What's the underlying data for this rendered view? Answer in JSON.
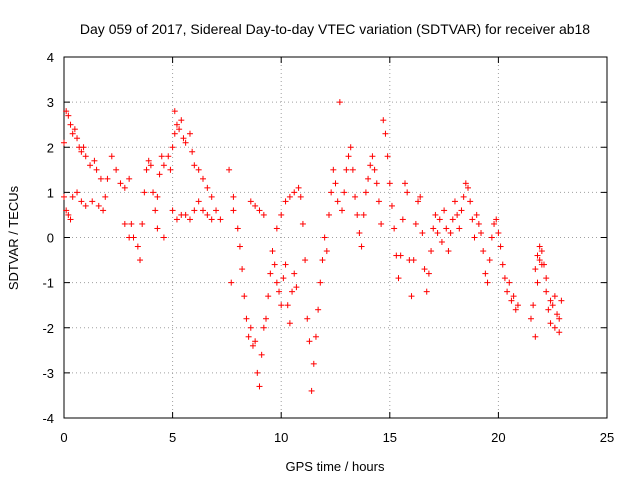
{
  "chart_data": {
    "type": "scatter",
    "title": "Day 059 of 2017, Sidereal Day-to-day VTEC variation (SDTVAR) for receiver ab18",
    "xlabel": "GPS time / hours",
    "ylabel": "SDTVAR / TECUs",
    "xlim": [
      0,
      25
    ],
    "ylim": [
      -4,
      4
    ],
    "grid": true,
    "marker": "+",
    "color": "#ff0000",
    "x_ticks": [
      "0",
      "5",
      "10",
      "15",
      "20",
      "25"
    ],
    "y_ticks": [
      "-4",
      "-3",
      "-2",
      "-1",
      "0",
      "1",
      "2",
      "3",
      "4"
    ],
    "series": [
      {
        "name": "SDTVAR",
        "points": [
          [
            0.0,
            2.1
          ],
          [
            0.1,
            2.8
          ],
          [
            0.2,
            2.7
          ],
          [
            0.3,
            2.5
          ],
          [
            0.4,
            2.3
          ],
          [
            0.5,
            2.4
          ],
          [
            0.6,
            2.2
          ],
          [
            0.7,
            2.0
          ],
          [
            0.8,
            1.9
          ],
          [
            0.9,
            2.0
          ],
          [
            1.0,
            1.8
          ],
          [
            1.2,
            1.6
          ],
          [
            1.4,
            1.7
          ],
          [
            1.5,
            1.5
          ],
          [
            1.7,
            1.3
          ],
          [
            0.0,
            0.9
          ],
          [
            0.1,
            0.6
          ],
          [
            0.2,
            0.5
          ],
          [
            0.3,
            0.4
          ],
          [
            0.4,
            0.9
          ],
          [
            0.6,
            1.0
          ],
          [
            0.8,
            0.8
          ],
          [
            1.0,
            0.7
          ],
          [
            1.3,
            0.8
          ],
          [
            1.6,
            0.7
          ],
          [
            1.8,
            0.6
          ],
          [
            1.9,
            0.9
          ],
          [
            2.0,
            1.3
          ],
          [
            2.2,
            1.8
          ],
          [
            2.4,
            1.5
          ],
          [
            2.6,
            1.2
          ],
          [
            2.8,
            1.1
          ],
          [
            3.0,
            1.3
          ],
          [
            3.1,
            0.3
          ],
          [
            3.2,
            0.0
          ],
          [
            3.4,
            -0.2
          ],
          [
            3.5,
            -0.5
          ],
          [
            3.6,
            0.3
          ],
          [
            3.7,
            1.0
          ],
          [
            3.8,
            1.5
          ],
          [
            3.9,
            1.7
          ],
          [
            4.0,
            1.6
          ],
          [
            4.1,
            1.0
          ],
          [
            4.2,
            0.6
          ],
          [
            4.3,
            0.9
          ],
          [
            4.4,
            1.4
          ],
          [
            4.5,
            1.8
          ],
          [
            4.6,
            1.6
          ],
          [
            4.8,
            1.8
          ],
          [
            4.9,
            1.5
          ],
          [
            5.0,
            2.0
          ],
          [
            5.1,
            2.3
          ],
          [
            5.2,
            2.5
          ],
          [
            5.3,
            2.4
          ],
          [
            5.4,
            2.6
          ],
          [
            5.5,
            2.2
          ],
          [
            5.6,
            2.1
          ],
          [
            5.8,
            2.3
          ],
          [
            5.9,
            1.9
          ],
          [
            6.0,
            1.6
          ],
          [
            6.2,
            1.5
          ],
          [
            6.4,
            1.3
          ],
          [
            6.6,
            1.1
          ],
          [
            6.8,
            0.9
          ],
          [
            7.0,
            0.6
          ],
          [
            7.2,
            0.4
          ],
          [
            2.8,
            0.3
          ],
          [
            3.0,
            0.0
          ],
          [
            4.3,
            0.2
          ],
          [
            4.6,
            0.0
          ],
          [
            5.0,
            0.6
          ],
          [
            5.2,
            0.4
          ],
          [
            5.4,
            0.5
          ],
          [
            5.6,
            0.5
          ],
          [
            5.8,
            0.4
          ],
          [
            6.0,
            0.6
          ],
          [
            6.2,
            0.8
          ],
          [
            6.4,
            0.6
          ],
          [
            6.6,
            0.5
          ],
          [
            6.8,
            0.4
          ],
          [
            5.1,
            2.8
          ],
          [
            7.7,
            -1.0
          ],
          [
            7.6,
            1.5
          ],
          [
            7.8,
            0.9
          ],
          [
            7.8,
            0.6
          ],
          [
            8.0,
            0.2
          ],
          [
            8.1,
            -0.2
          ],
          [
            8.2,
            -0.7
          ],
          [
            8.3,
            -1.3
          ],
          [
            8.4,
            -1.8
          ],
          [
            8.5,
            -2.2
          ],
          [
            8.6,
            -2.0
          ],
          [
            8.7,
            -2.4
          ],
          [
            8.8,
            -2.3
          ],
          [
            8.9,
            -3.0
          ],
          [
            9.0,
            -3.3
          ],
          [
            9.1,
            -2.6
          ],
          [
            9.2,
            -2.0
          ],
          [
            9.3,
            -1.8
          ],
          [
            9.4,
            -1.3
          ],
          [
            9.5,
            -0.8
          ],
          [
            9.6,
            -0.3
          ],
          [
            9.7,
            -0.6
          ],
          [
            9.8,
            -1.0
          ],
          [
            9.9,
            -1.2
          ],
          [
            10.0,
            -1.5
          ],
          [
            10.1,
            -0.9
          ],
          [
            10.2,
            -0.6
          ],
          [
            10.3,
            -1.5
          ],
          [
            10.4,
            -1.9
          ],
          [
            10.5,
            -1.2
          ],
          [
            10.6,
            -0.8
          ],
          [
            10.7,
            -1.1
          ],
          [
            8.6,
            0.8
          ],
          [
            8.8,
            0.7
          ],
          [
            9.0,
            0.6
          ],
          [
            9.2,
            0.5
          ],
          [
            9.8,
            0.2
          ],
          [
            10.0,
            0.5
          ],
          [
            10.2,
            0.8
          ],
          [
            10.4,
            0.9
          ],
          [
            10.6,
            1.0
          ],
          [
            10.8,
            1.1
          ],
          [
            10.9,
            0.9
          ],
          [
            11.0,
            0.3
          ],
          [
            11.1,
            -0.5
          ],
          [
            11.2,
            -1.8
          ],
          [
            11.3,
            -2.3
          ],
          [
            11.4,
            -3.4
          ],
          [
            11.5,
            -2.8
          ],
          [
            11.6,
            -2.2
          ],
          [
            11.7,
            -1.6
          ],
          [
            11.8,
            -1.0
          ],
          [
            11.9,
            -0.5
          ],
          [
            12.0,
            0.0
          ],
          [
            12.1,
            -0.3
          ],
          [
            12.2,
            0.5
          ],
          [
            12.3,
            1.0
          ],
          [
            12.4,
            1.5
          ],
          [
            12.5,
            1.2
          ],
          [
            12.6,
            0.8
          ],
          [
            12.7,
            3.0
          ],
          [
            12.8,
            0.6
          ],
          [
            12.9,
            1.0
          ],
          [
            13.0,
            1.5
          ],
          [
            13.1,
            1.8
          ],
          [
            13.2,
            2.0
          ],
          [
            13.3,
            1.5
          ],
          [
            13.4,
            0.9
          ],
          [
            13.5,
            0.5
          ],
          [
            13.6,
            0.1
          ],
          [
            13.7,
            -0.2
          ],
          [
            13.8,
            0.5
          ],
          [
            13.9,
            1.0
          ],
          [
            14.0,
            1.3
          ],
          [
            14.1,
            1.6
          ],
          [
            14.2,
            1.8
          ],
          [
            14.3,
            1.5
          ],
          [
            14.4,
            1.2
          ],
          [
            14.5,
            0.8
          ],
          [
            14.6,
            0.3
          ],
          [
            14.7,
            2.6
          ],
          [
            14.8,
            2.3
          ],
          [
            14.9,
            1.8
          ],
          [
            15.0,
            1.2
          ],
          [
            15.1,
            0.7
          ],
          [
            15.2,
            0.2
          ],
          [
            15.3,
            -0.4
          ],
          [
            15.4,
            -0.9
          ],
          [
            15.5,
            -0.4
          ],
          [
            15.6,
            0.4
          ],
          [
            15.7,
            1.2
          ],
          [
            15.8,
            1.0
          ],
          [
            15.9,
            -0.5
          ],
          [
            16.0,
            -1.3
          ],
          [
            16.1,
            -0.5
          ],
          [
            16.2,
            0.3
          ],
          [
            16.3,
            0.8
          ],
          [
            16.4,
            0.9
          ],
          [
            16.5,
            0.1
          ],
          [
            16.6,
            -0.7
          ],
          [
            16.7,
            -1.2
          ],
          [
            16.8,
            -0.8
          ],
          [
            16.9,
            -0.3
          ],
          [
            17.0,
            0.2
          ],
          [
            17.1,
            0.5
          ],
          [
            17.2,
            0.1
          ],
          [
            17.3,
            0.4
          ],
          [
            17.4,
            -0.1
          ],
          [
            17.5,
            0.6
          ],
          [
            17.6,
            0.2
          ],
          [
            17.7,
            -0.3
          ],
          [
            17.8,
            0.1
          ],
          [
            17.9,
            0.4
          ],
          [
            18.0,
            0.8
          ],
          [
            18.1,
            0.5
          ],
          [
            18.2,
            0.2
          ],
          [
            18.3,
            0.6
          ],
          [
            18.4,
            0.9
          ],
          [
            18.5,
            1.2
          ],
          [
            18.6,
            1.1
          ],
          [
            18.7,
            0.8
          ],
          [
            18.8,
            0.4
          ],
          [
            18.9,
            0.0
          ],
          [
            19.0,
            0.5
          ],
          [
            19.1,
            0.3
          ],
          [
            19.2,
            0.1
          ],
          [
            19.3,
            -0.3
          ],
          [
            19.4,
            -0.8
          ],
          [
            19.5,
            -1.0
          ],
          [
            19.6,
            -0.5
          ],
          [
            19.7,
            0.0
          ],
          [
            19.8,
            0.3
          ],
          [
            19.9,
            0.4
          ],
          [
            20.0,
            0.1
          ],
          [
            20.1,
            -0.2
          ],
          [
            20.2,
            -0.6
          ],
          [
            20.3,
            -0.9
          ],
          [
            20.4,
            -1.2
          ],
          [
            20.5,
            -1.0
          ],
          [
            20.6,
            -1.4
          ],
          [
            20.7,
            -1.3
          ],
          [
            20.8,
            -1.6
          ],
          [
            20.9,
            -1.5
          ],
          [
            21.5,
            -1.8
          ],
          [
            21.6,
            -1.5
          ],
          [
            21.7,
            -2.2
          ],
          [
            21.8,
            -1.0
          ],
          [
            21.9,
            -0.5
          ],
          [
            22.0,
            -0.3
          ],
          [
            22.1,
            -0.6
          ],
          [
            22.2,
            -1.2
          ],
          [
            22.3,
            -1.6
          ],
          [
            22.4,
            -1.9
          ],
          [
            22.5,
            -1.5
          ],
          [
            22.6,
            -1.3
          ],
          [
            22.7,
            -1.7
          ],
          [
            22.8,
            -2.1
          ],
          [
            22.9,
            -1.4
          ],
          [
            22.8,
            -1.8
          ],
          [
            22.6,
            -2.0
          ],
          [
            22.4,
            -1.4
          ],
          [
            22.2,
            -0.9
          ],
          [
            22.0,
            -0.6
          ],
          [
            21.8,
            -0.4
          ],
          [
            21.7,
            -0.7
          ],
          [
            21.9,
            -0.2
          ]
        ]
      }
    ]
  }
}
